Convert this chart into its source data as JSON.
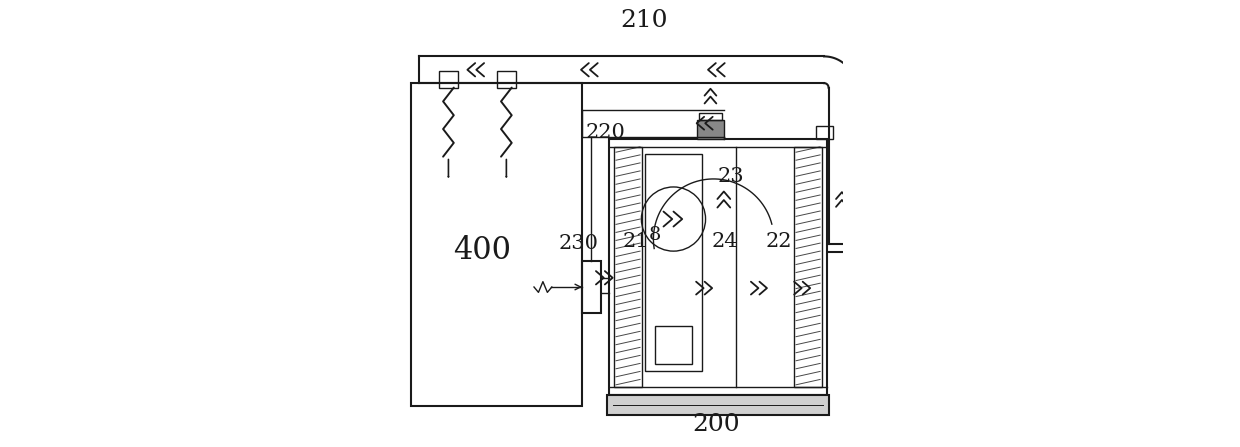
{
  "bg_color": "#ffffff",
  "line_color": "#1a1a1a",
  "label_color": "#1a1a1a",
  "fig_width": 12.4,
  "fig_height": 4.47,
  "label_props": {
    "210": [
      0.555,
      0.955,
      18
    ],
    "220": [
      0.468,
      0.705,
      15
    ],
    "23": [
      0.748,
      0.605,
      15
    ],
    "230": [
      0.408,
      0.455,
      15
    ],
    "400": [
      0.19,
      0.44,
      22
    ],
    "200": [
      0.715,
      0.048,
      18
    ],
    "21": [
      0.535,
      0.46,
      15
    ],
    "8": [
      0.578,
      0.475,
      14
    ],
    "24": [
      0.735,
      0.46,
      15
    ],
    "22": [
      0.857,
      0.46,
      15
    ]
  }
}
